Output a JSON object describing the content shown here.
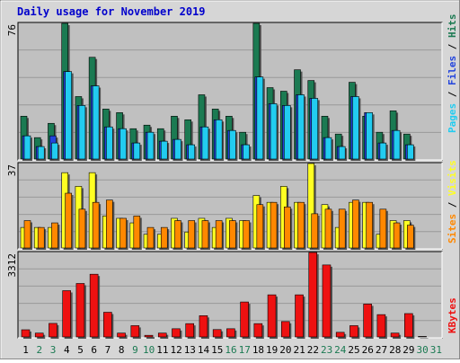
{
  "title": "Daily usage for November 2019",
  "colors": {
    "background": "#c0c0c0",
    "grid": "#999999",
    "title": "#0000cc",
    "hits": "#1b7a52",
    "files": "#2244dd",
    "pages": "#22ccf0",
    "visits": "#ffff22",
    "sites": "#ff8800",
    "kbytes": "#ee1111",
    "weekend_day": "#1b7a52",
    "weekday": "#000000"
  },
  "chart_data": [
    {
      "type": "bar",
      "name": "hits-files-pages",
      "ymax_label": "76",
      "ymax": 76,
      "legend": [
        "Pages",
        "Files",
        "Hits"
      ],
      "categories": [
        "1",
        "2",
        "3",
        "4",
        "5",
        "6",
        "7",
        "8",
        "9",
        "10",
        "11",
        "12",
        "13",
        "14",
        "15",
        "16",
        "17",
        "18",
        "19",
        "20",
        "21",
        "22",
        "23",
        "24",
        "25",
        "26",
        "27",
        "28",
        "29",
        "30",
        "31"
      ],
      "series": [
        {
          "name": "Hits",
          "values": [
            24,
            12,
            20,
            76,
            35,
            57,
            28,
            26,
            17,
            19,
            17,
            24,
            22,
            36,
            28,
            24,
            15,
            76,
            40,
            38,
            50,
            44,
            24,
            14,
            43,
            24,
            15,
            27,
            14,
            0,
            0
          ]
        },
        {
          "name": "Files",
          "values": [
            13,
            7,
            13,
            49,
            30,
            41,
            18,
            17,
            9,
            15,
            10,
            11,
            8,
            18,
            22,
            16,
            8,
            46,
            31,
            30,
            36,
            34,
            12,
            7,
            35,
            26,
            9,
            16,
            8,
            0,
            0
          ]
        },
        {
          "name": "Pages",
          "values": [
            13,
            7,
            9,
            49,
            30,
            41,
            18,
            17,
            9,
            15,
            10,
            11,
            8,
            18,
            22,
            16,
            8,
            46,
            31,
            30,
            36,
            34,
            12,
            7,
            35,
            26,
            9,
            16,
            8,
            0,
            0
          ]
        }
      ]
    },
    {
      "type": "bar",
      "name": "visits-sites",
      "ymax_label": "37",
      "ymax": 37,
      "legend": [
        "Sites",
        "Visits"
      ],
      "categories": [
        "1",
        "2",
        "3",
        "4",
        "5",
        "6",
        "7",
        "8",
        "9",
        "10",
        "11",
        "12",
        "13",
        "14",
        "15",
        "16",
        "17",
        "18",
        "19",
        "20",
        "21",
        "22",
        "23",
        "24",
        "25",
        "26",
        "27",
        "28",
        "29",
        "30",
        "31"
      ],
      "series": [
        {
          "name": "Visits",
          "values": [
            9,
            9,
            9,
            33,
            27,
            33,
            14,
            13,
            11,
            6,
            6,
            13,
            7,
            13,
            9,
            13,
            12,
            23,
            20,
            27,
            20,
            37,
            19,
            9,
            20,
            20,
            6,
            12,
            12,
            0,
            0
          ]
        },
        {
          "name": "Sites",
          "values": [
            12,
            9,
            11,
            24,
            17,
            20,
            21,
            13,
            14,
            9,
            9,
            12,
            12,
            12,
            12,
            12,
            12,
            19,
            20,
            18,
            20,
            15,
            17,
            17,
            21,
            20,
            17,
            11,
            10,
            0,
            0
          ]
        }
      ]
    },
    {
      "type": "bar",
      "name": "kbytes",
      "ymax_label": "3312",
      "ymax": 3312,
      "legend": [
        "KBytes"
      ],
      "categories": [
        "1",
        "2",
        "3",
        "4",
        "5",
        "6",
        "7",
        "8",
        "9",
        "10",
        "11",
        "12",
        "13",
        "14",
        "15",
        "16",
        "17",
        "18",
        "19",
        "20",
        "21",
        "22",
        "23",
        "24",
        "25",
        "26",
        "27",
        "28",
        "29",
        "30",
        "31"
      ],
      "series": [
        {
          "name": "KBytes",
          "values": [
            282,
            151,
            532,
            1815,
            2097,
            2460,
            968,
            151,
            443,
            64,
            151,
            322,
            523,
            834,
            290,
            322,
            1371,
            523,
            1652,
            604,
            1652,
            3312,
            2823,
            182,
            443,
            1290,
            876,
            151,
            917,
            20,
            0
          ]
        }
      ]
    }
  ],
  "x_axis": {
    "days": [
      "1",
      "2",
      "3",
      "4",
      "5",
      "6",
      "7",
      "8",
      "9",
      "10",
      "11",
      "12",
      "13",
      "14",
      "15",
      "16",
      "17",
      "18",
      "19",
      "20",
      "21",
      "22",
      "23",
      "24",
      "25",
      "26",
      "27",
      "28",
      "29",
      "30",
      "31"
    ],
    "weekend_days": [
      "2",
      "3",
      "9",
      "10",
      "16",
      "17",
      "23",
      "24",
      "30",
      "31"
    ]
  }
}
